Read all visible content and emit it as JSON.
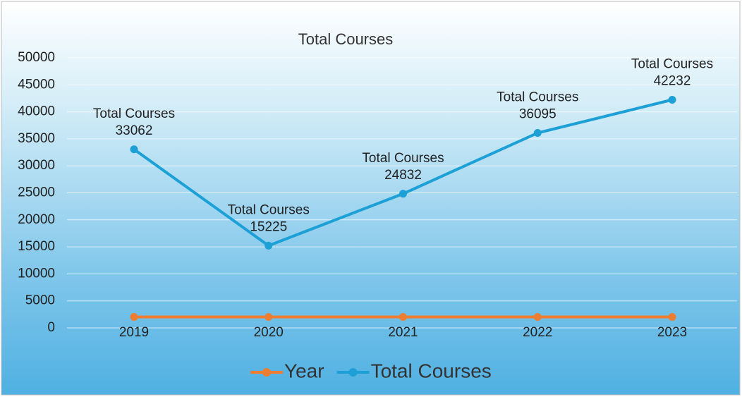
{
  "chart_data": {
    "type": "line",
    "title": "Total Courses",
    "categories": [
      "2019",
      "2020",
      "2021",
      "2022",
      "2023"
    ],
    "series": [
      {
        "name": "Year",
        "color": "#ed7d31",
        "values": [
          2019,
          2020,
          2021,
          2022,
          2023
        ]
      },
      {
        "name": "Total Courses",
        "color": "#1ca0d6",
        "values": [
          33062,
          15225,
          24832,
          36095,
          42232
        ],
        "data_labels": true
      }
    ],
    "ylim": [
      0,
      50000
    ],
    "yticks": [
      0,
      5000,
      10000,
      15000,
      20000,
      25000,
      30000,
      35000,
      40000,
      45000,
      50000
    ],
    "grid": true,
    "legend": "bottom"
  }
}
